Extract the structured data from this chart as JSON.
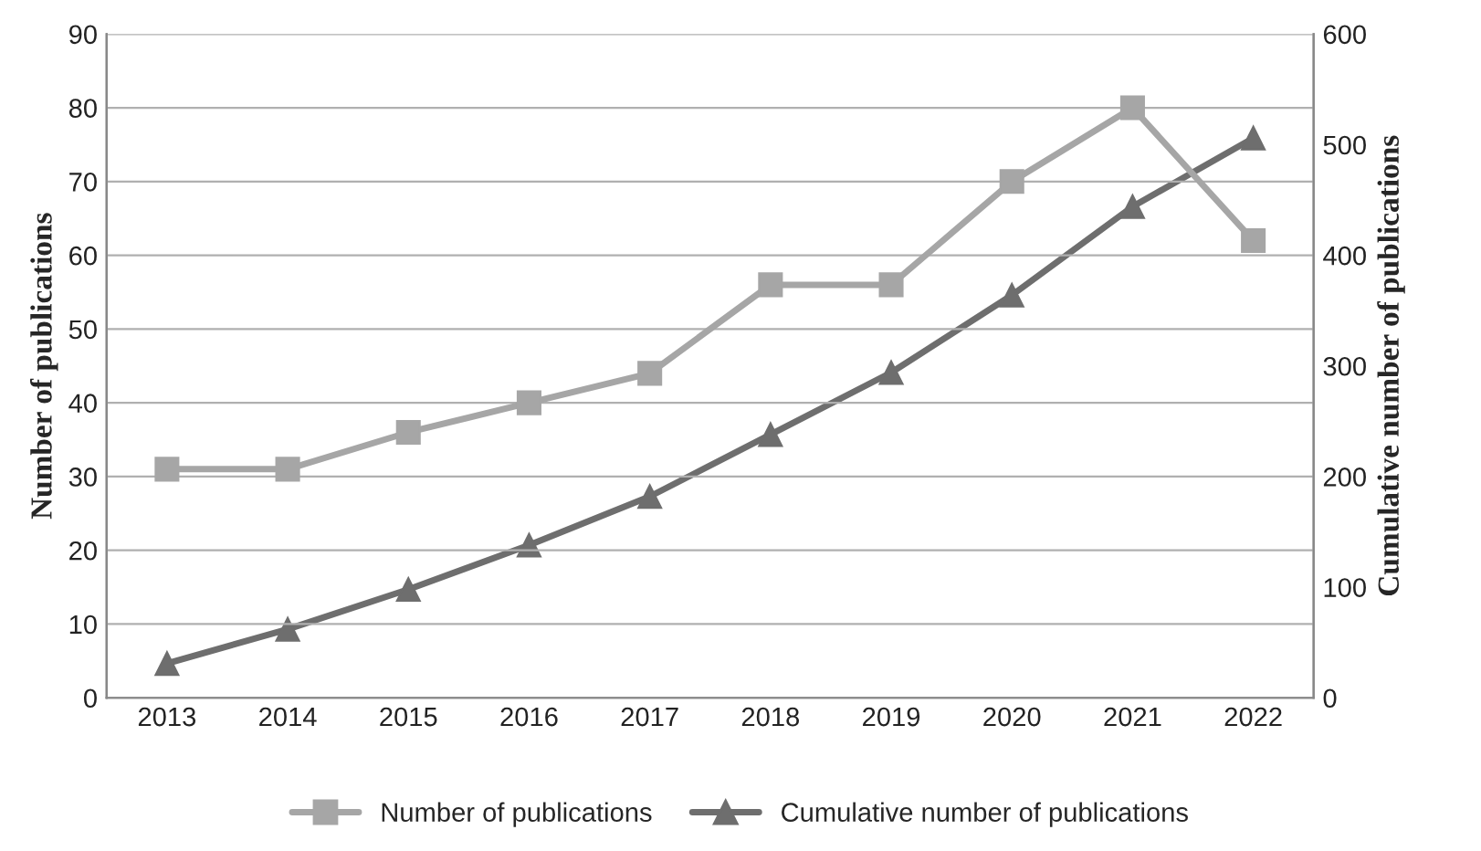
{
  "chart_data": {
    "type": "line",
    "ylabel": "Number of publications",
    "y2label": "Cumulative number of publications",
    "categories": [
      "2013",
      "2014",
      "2015",
      "2016",
      "2017",
      "2018",
      "2019",
      "2020",
      "2021",
      "2022"
    ],
    "series": [
      {
        "name": "Number of publications",
        "color": "#a6a6a6",
        "marker": "square",
        "values": [
          31,
          31,
          36,
          40,
          44,
          56,
          56,
          70,
          80,
          62
        ]
      },
      {
        "name": "Cumulative number of publications",
        "color": "#6e6e6e",
        "marker": "triangle",
        "axis": "y2",
        "values": [
          31,
          62,
          98,
          138,
          182,
          238,
          294,
          364,
          444,
          506
        ]
      }
    ],
    "ylim": [
      0,
      90
    ],
    "yticks": [
      0,
      10,
      20,
      30,
      40,
      50,
      60,
      70,
      80,
      90
    ],
    "y2lim": [
      0,
      600
    ],
    "y2ticks": [
      0,
      100,
      200,
      300,
      400,
      500,
      600
    ],
    "grid": "y",
    "legend": "bottom",
    "line_style": "solid"
  }
}
